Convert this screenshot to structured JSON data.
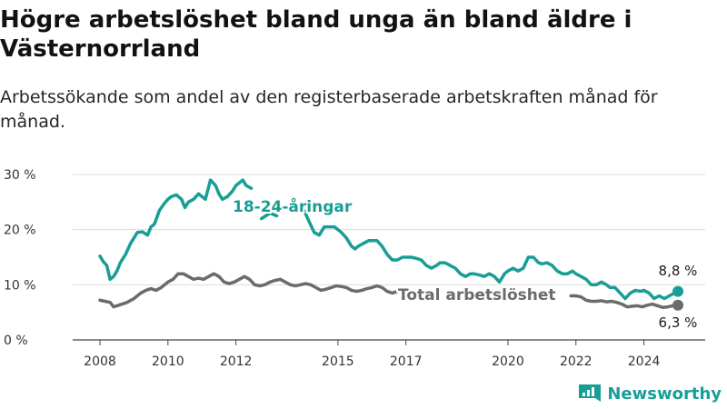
{
  "title": "Högre arbetslöshet bland unga än bland äldre i Västernorrland",
  "subtitle": "Arbetssökande som andel av den registerbaserade arbetskraften månad för månad.",
  "brand": {
    "name": "Newsworthy",
    "icon": "newsworthy-logo-icon",
    "color": "#189e96"
  },
  "chart_data": {
    "type": "line",
    "title": "Högre arbetslöshet bland unga än bland äldre i Västernorrland",
    "subtitle": "Arbetssökande som andel av den registerbaserade arbetskraften månad för månad.",
    "xlabel": "",
    "ylabel": "",
    "xlim": [
      2008.0,
      2025.5
    ],
    "ylim": [
      0,
      30
    ],
    "grid": true,
    "x_ticks": [
      2008,
      2010,
      2012,
      2015,
      2017,
      2020,
      2022,
      2024
    ],
    "y_ticks": [
      0,
      10,
      20,
      30
    ],
    "y_tick_labels": [
      "0 %",
      "10 %",
      "20 %",
      "30 %"
    ],
    "series": [
      {
        "name": "18-24-åringar",
        "color": "#189e96",
        "points": [
          [
            2008.0,
            15.2
          ],
          [
            2008.1,
            14.2
          ],
          [
            2008.2,
            13.5
          ],
          [
            2008.3,
            11.0
          ],
          [
            2008.4,
            11.5
          ],
          [
            2008.5,
            12.5
          ],
          [
            2008.6,
            14.0
          ],
          [
            2008.75,
            15.5
          ],
          [
            2008.9,
            17.5
          ],
          [
            2009.0,
            18.5
          ],
          [
            2009.1,
            19.5
          ],
          [
            2009.25,
            19.6
          ],
          [
            2009.4,
            19.0
          ],
          [
            2009.5,
            20.5
          ],
          [
            2009.6,
            21.0
          ],
          [
            2009.75,
            23.5
          ],
          [
            2009.9,
            24.8
          ],
          [
            2010.0,
            25.5
          ],
          [
            2010.1,
            26.0
          ],
          [
            2010.25,
            26.3
          ],
          [
            2010.4,
            25.5
          ],
          [
            2010.5,
            24.0
          ],
          [
            2010.6,
            25.0
          ],
          [
            2010.75,
            25.5
          ],
          [
            2010.9,
            26.5
          ],
          [
            2011.0,
            26.0
          ],
          [
            2011.1,
            25.5
          ],
          [
            2011.25,
            29.0
          ],
          [
            2011.4,
            28.0
          ],
          [
            2011.5,
            26.5
          ],
          [
            2011.6,
            25.5
          ],
          [
            2011.75,
            26.0
          ],
          [
            2011.9,
            27.0
          ],
          [
            2012.0,
            28.0
          ],
          [
            2012.1,
            28.5
          ],
          [
            2012.2,
            29.0
          ],
          [
            2012.3,
            28.0
          ],
          [
            2012.45,
            27.5
          ],
          [
            2012.75,
            22.0
          ],
          [
            2013.0,
            23.0
          ],
          [
            2013.2,
            22.5
          ],
          [
            2013.5,
            24.5
          ],
          [
            2013.8,
            24.0
          ],
          [
            2014.0,
            23.5
          ],
          [
            2014.15,
            21.5
          ],
          [
            2014.3,
            19.5
          ],
          [
            2014.45,
            19.0
          ],
          [
            2014.6,
            20.5
          ],
          [
            2014.75,
            20.5
          ],
          [
            2014.9,
            20.5
          ],
          [
            2015.0,
            20.0
          ],
          [
            2015.1,
            19.5
          ],
          [
            2015.25,
            18.5
          ],
          [
            2015.4,
            17.0
          ],
          [
            2015.5,
            16.5
          ],
          [
            2015.6,
            17.0
          ],
          [
            2015.75,
            17.5
          ],
          [
            2015.9,
            18.0
          ],
          [
            2016.0,
            18.0
          ],
          [
            2016.15,
            18.0
          ],
          [
            2016.3,
            17.0
          ],
          [
            2016.45,
            15.5
          ],
          [
            2016.6,
            14.5
          ],
          [
            2016.75,
            14.5
          ],
          [
            2016.9,
            15.0
          ],
          [
            2017.0,
            15.0
          ],
          [
            2017.15,
            15.0
          ],
          [
            2017.3,
            14.8
          ],
          [
            2017.45,
            14.5
          ],
          [
            2017.6,
            13.5
          ],
          [
            2017.75,
            13.0
          ],
          [
            2017.9,
            13.5
          ],
          [
            2018.0,
            14.0
          ],
          [
            2018.15,
            14.0
          ],
          [
            2018.3,
            13.5
          ],
          [
            2018.45,
            13.0
          ],
          [
            2018.6,
            12.0
          ],
          [
            2018.75,
            11.5
          ],
          [
            2018.9,
            12.0
          ],
          [
            2019.0,
            12.0
          ],
          [
            2019.15,
            11.8
          ],
          [
            2019.3,
            11.5
          ],
          [
            2019.45,
            12.0
          ],
          [
            2019.6,
            11.5
          ],
          [
            2019.75,
            10.5
          ],
          [
            2019.9,
            12.0
          ],
          [
            2020.0,
            12.5
          ],
          [
            2020.15,
            13.0
          ],
          [
            2020.3,
            12.5
          ],
          [
            2020.45,
            13.0
          ],
          [
            2020.6,
            15.0
          ],
          [
            2020.75,
            15.0
          ],
          [
            2020.9,
            14.0
          ],
          [
            2021.0,
            13.8
          ],
          [
            2021.15,
            14.0
          ],
          [
            2021.3,
            13.5
          ],
          [
            2021.45,
            12.5
          ],
          [
            2021.6,
            12.0
          ],
          [
            2021.75,
            12.0
          ],
          [
            2021.9,
            12.5
          ],
          [
            2022.0,
            12.0
          ],
          [
            2022.15,
            11.5
          ],
          [
            2022.3,
            11.0
          ],
          [
            2022.45,
            10.0
          ],
          [
            2022.6,
            10.0
          ],
          [
            2022.75,
            10.5
          ],
          [
            2022.9,
            10.0
          ],
          [
            2023.0,
            9.5
          ],
          [
            2023.15,
            9.5
          ],
          [
            2023.3,
            8.5
          ],
          [
            2023.45,
            7.5
          ],
          [
            2023.6,
            8.5
          ],
          [
            2023.75,
            9.0
          ],
          [
            2023.9,
            8.8
          ],
          [
            2024.0,
            9.0
          ],
          [
            2024.15,
            8.5
          ],
          [
            2024.3,
            7.5
          ],
          [
            2024.45,
            8.0
          ],
          [
            2024.6,
            7.5
          ],
          [
            2024.75,
            8.0
          ],
          [
            2024.9,
            8.5
          ],
          [
            2025.0,
            8.8
          ]
        ],
        "end_value": "8,8 %"
      },
      {
        "name": "Total arbetslöshet",
        "color": "#6b6b6b",
        "points": [
          [
            2008.0,
            7.2
          ],
          [
            2008.15,
            7.0
          ],
          [
            2008.3,
            6.8
          ],
          [
            2008.4,
            6.0
          ],
          [
            2008.5,
            6.2
          ],
          [
            2008.65,
            6.5
          ],
          [
            2008.8,
            6.8
          ],
          [
            2009.0,
            7.5
          ],
          [
            2009.2,
            8.5
          ],
          [
            2009.35,
            9.0
          ],
          [
            2009.5,
            9.3
          ],
          [
            2009.65,
            9.0
          ],
          [
            2009.8,
            9.5
          ],
          [
            2010.0,
            10.5
          ],
          [
            2010.15,
            11.0
          ],
          [
            2010.3,
            12.0
          ],
          [
            2010.45,
            12.0
          ],
          [
            2010.6,
            11.5
          ],
          [
            2010.75,
            11.0
          ],
          [
            2010.9,
            11.2
          ],
          [
            2011.05,
            11.0
          ],
          [
            2011.2,
            11.5
          ],
          [
            2011.35,
            12.0
          ],
          [
            2011.5,
            11.5
          ],
          [
            2011.65,
            10.5
          ],
          [
            2011.8,
            10.2
          ],
          [
            2011.95,
            10.5
          ],
          [
            2012.1,
            11.0
          ],
          [
            2012.25,
            11.5
          ],
          [
            2012.4,
            11.0
          ],
          [
            2012.55,
            10.0
          ],
          [
            2012.7,
            9.8
          ],
          [
            2012.85,
            10.0
          ],
          [
            2013.0,
            10.5
          ],
          [
            2013.15,
            10.8
          ],
          [
            2013.3,
            11.0
          ],
          [
            2013.45,
            10.5
          ],
          [
            2013.6,
            10.0
          ],
          [
            2013.75,
            9.8
          ],
          [
            2013.9,
            10.0
          ],
          [
            2014.05,
            10.2
          ],
          [
            2014.2,
            10.0
          ],
          [
            2014.35,
            9.5
          ],
          [
            2014.5,
            9.0
          ],
          [
            2014.65,
            9.2
          ],
          [
            2014.8,
            9.5
          ],
          [
            2014.95,
            9.8
          ],
          [
            2015.1,
            9.7
          ],
          [
            2015.25,
            9.5
          ],
          [
            2015.4,
            9.0
          ],
          [
            2015.55,
            8.8
          ],
          [
            2015.7,
            9.0
          ],
          [
            2015.85,
            9.3
          ],
          [
            2016.0,
            9.5
          ],
          [
            2016.15,
            9.8
          ],
          [
            2016.3,
            9.5
          ],
          [
            2016.45,
            8.8
          ],
          [
            2016.6,
            8.5
          ],
          [
            2016.75,
            8.8
          ],
          [
            2021.85,
            8.0
          ],
          [
            2022.0,
            8.0
          ],
          [
            2022.15,
            7.8
          ],
          [
            2022.3,
            7.2
          ],
          [
            2022.45,
            7.0
          ],
          [
            2022.6,
            7.0
          ],
          [
            2022.75,
            7.1
          ],
          [
            2022.9,
            6.9
          ],
          [
            2023.05,
            7.0
          ],
          [
            2023.2,
            6.8
          ],
          [
            2023.35,
            6.5
          ],
          [
            2023.5,
            6.0
          ],
          [
            2023.65,
            6.1
          ],
          [
            2023.8,
            6.2
          ],
          [
            2023.95,
            6.0
          ],
          [
            2024.1,
            6.3
          ],
          [
            2024.25,
            6.5
          ],
          [
            2024.4,
            6.2
          ],
          [
            2024.55,
            5.9
          ],
          [
            2024.7,
            6.0
          ],
          [
            2024.85,
            6.2
          ],
          [
            2025.0,
            6.3
          ]
        ],
        "end_value": "6,3 %"
      }
    ]
  }
}
